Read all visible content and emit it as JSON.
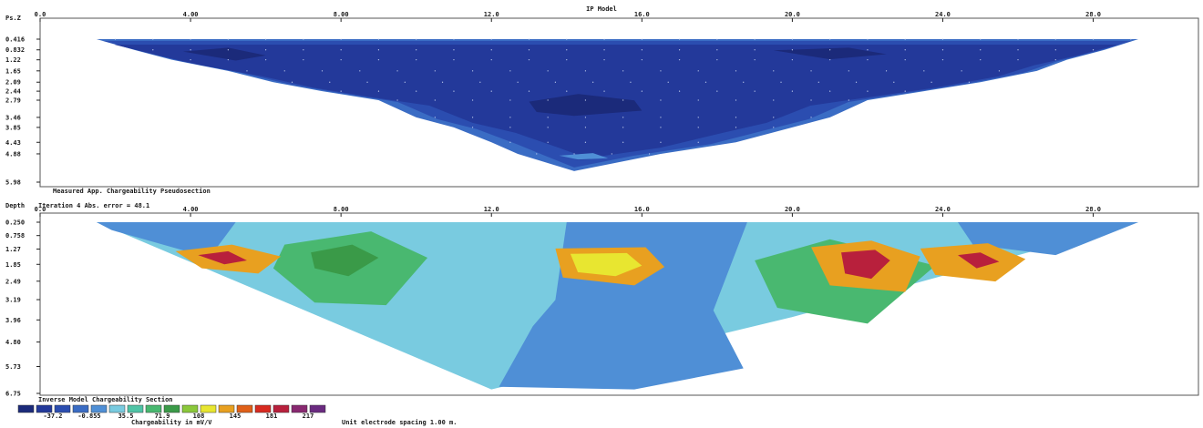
{
  "page": {
    "model_title": "IP Model",
    "unit_spacing": "Unit electrode spacing 1.00 m."
  },
  "chart_data": [
    {
      "type": "heatmap",
      "title": "Measured App. Chargeability Pseudosection",
      "ylabel": "Ps.Z",
      "x_ticks": [
        "0.0",
        "4.00",
        "8.00",
        "12.0",
        "16.0",
        "20.0",
        "24.0",
        "28.0"
      ],
      "x_values": [
        0,
        4,
        8,
        12,
        16,
        20,
        24,
        28
      ],
      "xlim": [
        0,
        31.5
      ],
      "y_ticks": [
        "0.416",
        "0.832",
        "1.22",
        "1.65",
        "2.09",
        "2.44",
        "2.79",
        "3.46",
        "3.85",
        "4.43",
        "4.88",
        "5.98"
      ],
      "y_values": [
        0.416,
        0.832,
        1.22,
        1.65,
        2.09,
        2.44,
        2.79,
        3.46,
        3.85,
        4.43,
        4.88,
        5.98
      ],
      "ylim": [
        0.416,
        5.98
      ],
      "coverage_left_x": [
        1.5,
        2.5,
        3.5,
        5.0,
        6.2,
        7.5,
        9.0,
        10.0,
        11.0,
        12.0,
        12.7
      ],
      "coverage_right_x": [
        29.2,
        28.3,
        27.3,
        26.5,
        25.0,
        23.5,
        22.0,
        21.0,
        20.0,
        18.5,
        16.5
      ],
      "coverage_depth": [
        0.416,
        0.832,
        1.22,
        1.65,
        2.09,
        2.44,
        2.79,
        3.46,
        3.85,
        4.43,
        4.88
      ],
      "bottom_apex": [
        14.2,
        5.55
      ],
      "anomalies": [
        {
          "level": 0,
          "x": [
            13.0,
            14.3,
            15.8,
            16.0,
            14.2,
            13.2
          ],
          "y": [
            2.85,
            2.55,
            2.8,
            3.2,
            3.4,
            3.25
          ]
        },
        {
          "level": 0,
          "x": [
            3.8,
            5.0,
            6.0,
            5.2
          ],
          "y": [
            0.9,
            0.75,
            1.05,
            1.25
          ]
        },
        {
          "level": 0,
          "x": [
            19.5,
            21.5,
            22.5,
            21.0
          ],
          "y": [
            0.85,
            0.75,
            1.0,
            1.2
          ]
        },
        {
          "level": 4,
          "x": [
            13.8,
            14.7,
            15.1,
            14.3
          ],
          "y": [
            4.95,
            4.85,
            5.05,
            5.1
          ]
        }
      ]
    },
    {
      "type": "heatmap",
      "title": "Inverse Model Chargeability Section",
      "iteration_label": "Iteration 4 Abs. error = 48.1",
      "ylabel": "Depth",
      "x_ticks": [
        "0.0",
        "4.00",
        "8.00",
        "12.0",
        "16.0",
        "20.0",
        "24.0",
        "28.0"
      ],
      "x_values": [
        0,
        4,
        8,
        12,
        16,
        20,
        24,
        28
      ],
      "xlim": [
        0,
        31.5
      ],
      "y_ticks": [
        "0.250",
        "0.758",
        "1.27",
        "1.85",
        "2.49",
        "3.19",
        "3.96",
        "4.80",
        "5.73",
        "6.75"
      ],
      "y_values": [
        0.25,
        0.758,
        1.27,
        1.85,
        2.49,
        3.19,
        3.96,
        4.8,
        5.73,
        6.75
      ],
      "ylim": [
        0.25,
        6.75
      ],
      "section_outline_x": [
        1.5,
        29.2,
        20.0,
        12.0
      ],
      "section_outline_y": [
        0.25,
        0.25,
        3.85,
        6.6
      ],
      "anomalies": [
        {
          "level": 7,
          "x": [
            6.5,
            8.8,
            10.3,
            9.2,
            7.3,
            6.2
          ],
          "y": [
            1.1,
            0.6,
            1.6,
            3.4,
            3.3,
            2.0
          ]
        },
        {
          "level": 8,
          "x": [
            7.2,
            8.3,
            9.0,
            8.2,
            7.3
          ],
          "y": [
            1.4,
            1.1,
            1.6,
            2.3,
            2.0
          ]
        },
        {
          "level": 7,
          "x": [
            19.0,
            21.0,
            23.8,
            22.0,
            19.6
          ],
          "y": [
            1.7,
            0.9,
            1.9,
            4.1,
            3.5
          ]
        },
        {
          "level": 11,
          "x": [
            3.6,
            5.1,
            6.4,
            5.8,
            4.3
          ],
          "y": [
            1.35,
            1.1,
            1.55,
            2.2,
            2.0
          ]
        },
        {
          "level": 14,
          "x": [
            4.2,
            5.0,
            5.5,
            4.9
          ],
          "y": [
            1.5,
            1.35,
            1.7,
            1.85
          ]
        },
        {
          "level": 11,
          "x": [
            13.7,
            16.1,
            16.6,
            15.8,
            13.9
          ],
          "y": [
            1.25,
            1.2,
            1.95,
            2.65,
            2.35
          ]
        },
        {
          "level": 10,
          "x": [
            14.1,
            15.6,
            16.0,
            15.3,
            14.3
          ],
          "y": [
            1.45,
            1.42,
            1.9,
            2.3,
            2.15
          ]
        },
        {
          "level": 11,
          "x": [
            20.5,
            22.1,
            23.4,
            23.0,
            21.0
          ],
          "y": [
            1.2,
            0.95,
            1.55,
            2.9,
            2.65
          ]
        },
        {
          "level": 14,
          "x": [
            21.3,
            22.2,
            22.6,
            22.1,
            21.4
          ],
          "y": [
            1.4,
            1.3,
            1.7,
            2.4,
            2.2
          ]
        },
        {
          "level": 11,
          "x": [
            23.4,
            25.2,
            26.2,
            25.4,
            23.8
          ],
          "y": [
            1.25,
            1.05,
            1.65,
            2.5,
            2.25
          ]
        },
        {
          "level": 14,
          "x": [
            24.4,
            25.0,
            25.5,
            24.9
          ],
          "y": [
            1.5,
            1.4,
            1.75,
            2.0
          ]
        }
      ]
    }
  ],
  "legend": {
    "title": "Chargeability in mV/V",
    "colors": [
      "#1b2a7a",
      "#23399a",
      "#2b4db0",
      "#3a6cc4",
      "#4f8fd6",
      "#79cbe0",
      "#4fc4a6",
      "#49b870",
      "#3a9a48",
      "#8ac83a",
      "#e8e630",
      "#e8a020",
      "#e06018",
      "#d82a20",
      "#b8203c",
      "#882870",
      "#6a2a80"
    ],
    "tick_labels": [
      "-37.2",
      "-0.855",
      "35.5",
      "71.9",
      "108",
      "145",
      "181",
      "217"
    ]
  }
}
